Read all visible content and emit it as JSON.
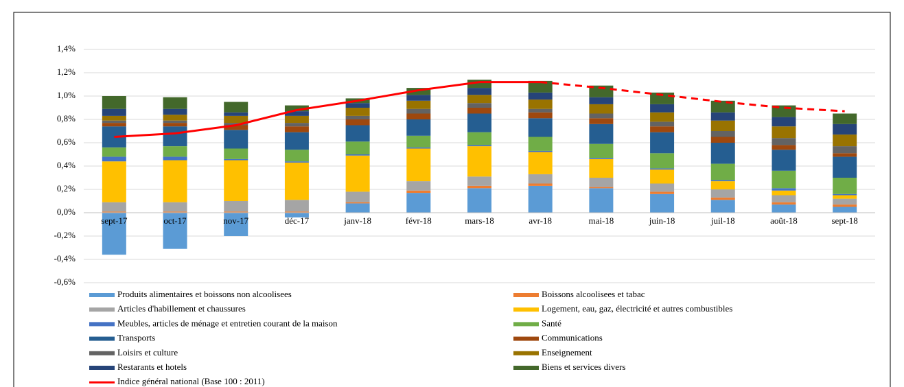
{
  "chart_data": {
    "type": "bar",
    "categories": [
      "sept-17",
      "oct-17",
      "nov-17",
      "déc-17",
      "janv-18",
      "févr-18",
      "mars-18",
      "avr-18",
      "mai-18",
      "juin-18",
      "juil-18",
      "août-18",
      "sept-18"
    ],
    "ylim": [
      -0.6,
      1.4
    ],
    "yticks": [
      {
        "value": -0.6,
        "label": "-0,6%"
      },
      {
        "value": -0.4,
        "label": "-0,4%"
      },
      {
        "value": -0.2,
        "label": "-0,2%"
      },
      {
        "value": 0,
        "label": "0,0%"
      },
      {
        "value": 0.2,
        "label": "0,2%"
      },
      {
        "value": 0.4,
        "label": "0,4%"
      },
      {
        "value": 0.6,
        "label": "0,6%"
      },
      {
        "value": 0.8,
        "label": "0,8%"
      },
      {
        "value": 1.0,
        "label": "1,0%"
      },
      {
        "value": 1.2,
        "label": "1,2%"
      },
      {
        "value": 1.4,
        "label": "1,4%"
      }
    ],
    "grid": true,
    "series": [
      {
        "name": "Produits alimentaires et boissons non alcoolisees",
        "color": "#5b9bd5",
        "values": [
          -0.36,
          -0.31,
          -0.2,
          -0.04,
          0.08,
          0.17,
          0.21,
          0.23,
          0.21,
          0.16,
          0.11,
          0.07,
          0.05
        ]
      },
      {
        "name": "Boissons alcoolisees et tabac",
        "color": "#ed7d31",
        "values": [
          0.01,
          0.01,
          0.01,
          0.01,
          0.01,
          0.02,
          0.02,
          0.02,
          0.01,
          0.02,
          0.02,
          0.02,
          0.02
        ]
      },
      {
        "name": "Articles d'habillement et chaussures",
        "color": "#a5a5a5",
        "values": [
          0.08,
          0.08,
          0.09,
          0.1,
          0.09,
          0.08,
          0.08,
          0.08,
          0.08,
          0.07,
          0.07,
          0.06,
          0.05
        ]
      },
      {
        "name": "Logement, eau, gaz, électricité et autres combustibles",
        "color": "#ffc000",
        "values": [
          0.35,
          0.36,
          0.35,
          0.32,
          0.31,
          0.28,
          0.26,
          0.19,
          0.16,
          0.12,
          0.07,
          0.04,
          0.03
        ]
      },
      {
        "name": "Meubles, articles de ménage et entretien courant de la maison",
        "color": "#4472c4",
        "values": [
          0.04,
          0.03,
          0.01,
          0.01,
          0.01,
          0.01,
          0.01,
          0.01,
          0.01,
          0.01,
          0.01,
          0.02,
          0.01
        ]
      },
      {
        "name": "Santé",
        "color": "#70ad47",
        "values": [
          0.08,
          0.09,
          0.09,
          0.1,
          0.11,
          0.1,
          0.11,
          0.12,
          0.12,
          0.13,
          0.14,
          0.15,
          0.14
        ]
      },
      {
        "name": "Transports",
        "color": "#255e91",
        "values": [
          0.18,
          0.17,
          0.16,
          0.15,
          0.14,
          0.14,
          0.16,
          0.16,
          0.17,
          0.18,
          0.18,
          0.18,
          0.18
        ]
      },
      {
        "name": "Communications",
        "color": "#9e480e",
        "values": [
          0.03,
          0.03,
          0.04,
          0.05,
          0.05,
          0.05,
          0.05,
          0.05,
          0.05,
          0.05,
          0.05,
          0.04,
          0.03
        ]
      },
      {
        "name": "Loisirs et culture",
        "color": "#636363",
        "values": [
          0.02,
          0.02,
          0.02,
          0.03,
          0.03,
          0.04,
          0.04,
          0.03,
          0.04,
          0.04,
          0.05,
          0.06,
          0.06
        ]
      },
      {
        "name": "Enseignement",
        "color": "#997300",
        "values": [
          0.04,
          0.05,
          0.06,
          0.06,
          0.07,
          0.07,
          0.07,
          0.08,
          0.08,
          0.08,
          0.09,
          0.1,
          0.1
        ]
      },
      {
        "name": "Restarants et hotels",
        "color": "#264478",
        "values": [
          0.06,
          0.05,
          0.03,
          0.04,
          0.04,
          0.05,
          0.06,
          0.06,
          0.06,
          0.07,
          0.07,
          0.08,
          0.09
        ]
      },
      {
        "name": "Biens et services divers",
        "color": "#43682b",
        "values": [
          0.11,
          0.1,
          0.09,
          0.05,
          0.04,
          0.06,
          0.07,
          0.1,
          0.1,
          0.1,
          0.1,
          0.1,
          0.09
        ]
      },
      {
        "name": "Indice général national (Base 100 : 2011)",
        "type": "line",
        "color": "#ff0000",
        "dashed_from_index": 7,
        "values": [
          0.65,
          0.68,
          0.75,
          0.88,
          0.96,
          1.05,
          1.12,
          1.12,
          1.07,
          1.01,
          0.95,
          0.9,
          0.87
        ]
      }
    ]
  }
}
